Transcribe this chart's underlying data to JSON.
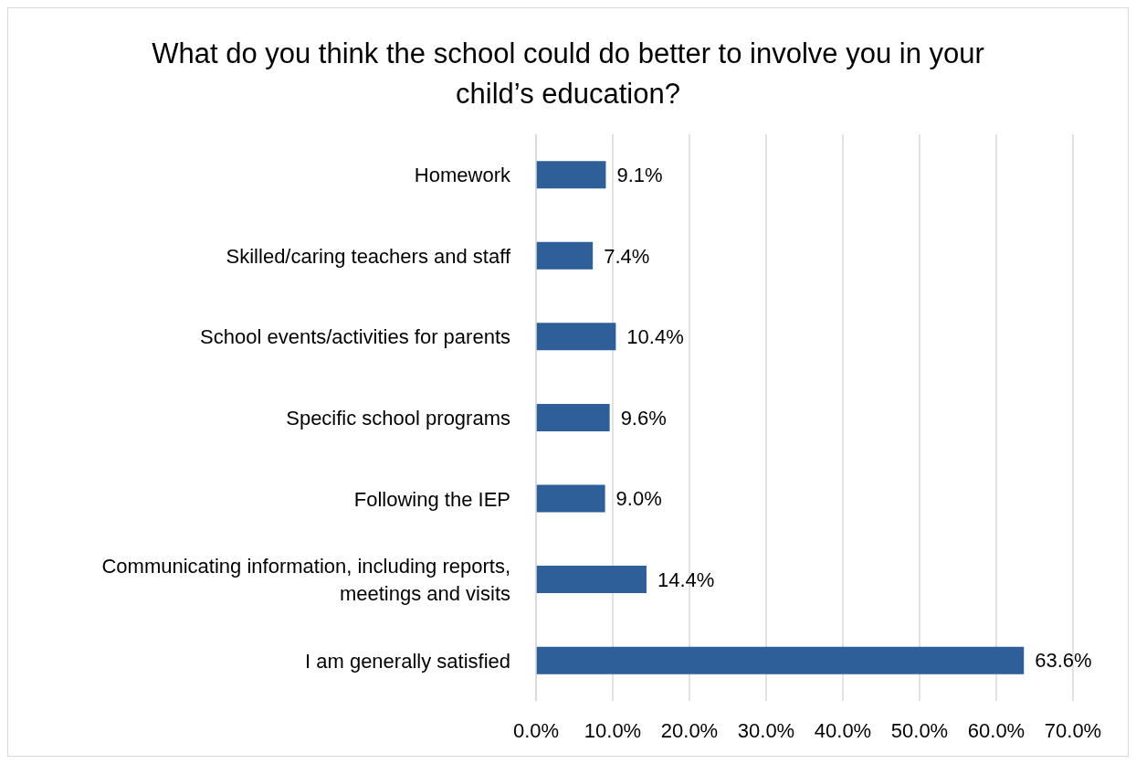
{
  "chart_data": {
    "type": "bar",
    "orientation": "horizontal",
    "title": "What do you think the school could do better to involve you in your child’s education?",
    "categories": [
      "Homework",
      "Skilled/caring teachers and staff",
      "School events/activities for parents",
      "Specific school programs",
      "Following the IEP",
      "Communicating information, including reports, meetings and visits",
      "I am generally satisfied"
    ],
    "values": [
      9.1,
      7.4,
      10.4,
      9.6,
      9.0,
      14.4,
      63.6
    ],
    "value_labels": [
      "9.1%",
      "7.4%",
      "10.4%",
      "9.6%",
      "9.0%",
      "14.4%",
      "63.6%"
    ],
    "color": "#2e5f99",
    "xlim": [
      0,
      70
    ],
    "xticks": [
      {
        "value": 0,
        "label": "0.0%"
      },
      {
        "value": 10,
        "label": "10.0%"
      },
      {
        "value": 20,
        "label": "20.0%"
      },
      {
        "value": 30,
        "label": "30.0%"
      },
      {
        "value": 40,
        "label": "40.0%"
      },
      {
        "value": 50,
        "label": "50.0%"
      },
      {
        "value": 60,
        "label": "60.0%"
      },
      {
        "value": 70,
        "label": "70.0%"
      }
    ],
    "grid": "x",
    "legend": false
  }
}
